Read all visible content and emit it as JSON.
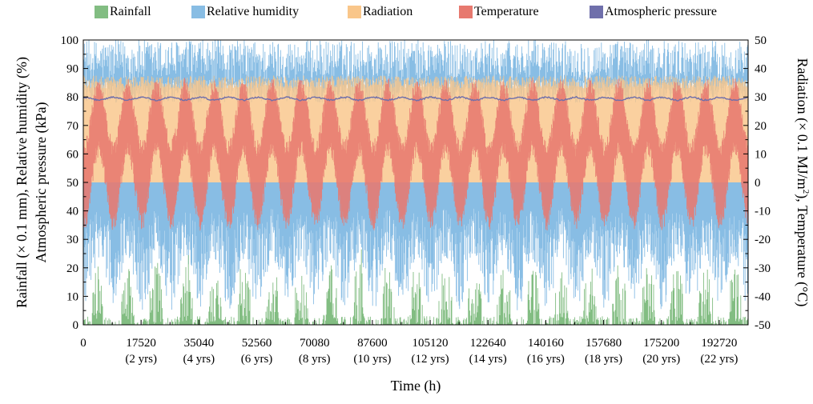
{
  "chart_data": {
    "type": "area",
    "title": "",
    "xlabel": "Time (h)",
    "ylabel_left": [
      "Rainfall (× 0.1 mm), Relative humidity (%)",
      "Atmospheric pressure (kPa)"
    ],
    "ylabel_right": "Radiation (× 0.1 MJ/m², Temperature (°C)",
    "ylabel_right_parts": [
      "Radiation (× 0.1 MJ/m",
      "2",
      "), Temperature (°C)"
    ],
    "xlim": [
      0,
      201480
    ],
    "ylim_left": [
      0,
      100
    ],
    "ylim_right": [
      -50,
      50
    ],
    "x_ticks": [
      {
        "value": 0,
        "label": "0",
        "sublabel": ""
      },
      {
        "value": 17520,
        "label": "17520",
        "sublabel": "(2 yrs)"
      },
      {
        "value": 35040,
        "label": "35040",
        "sublabel": "(4 yrs)"
      },
      {
        "value": 52560,
        "label": "52560",
        "sublabel": "(6 yrs)"
      },
      {
        "value": 70080,
        "label": "70080",
        "sublabel": "(8 yrs)"
      },
      {
        "value": 87600,
        "label": "87600",
        "sublabel": "(10 yrs)"
      },
      {
        "value": 105120,
        "label": "105120",
        "sublabel": "(12 yrs)"
      },
      {
        "value": 122640,
        "label": "122640",
        "sublabel": "(14 yrs)"
      },
      {
        "value": 140160,
        "label": "140160",
        "sublabel": "(16 yrs)"
      },
      {
        "value": 157680,
        "label": "157680",
        "sublabel": "(18 yrs)"
      },
      {
        "value": 175200,
        "label": "175200",
        "sublabel": "(20 yrs)"
      },
      {
        "value": 192720,
        "label": "192720",
        "sublabel": "(22 yrs)"
      }
    ],
    "y_ticks_left": [
      "0",
      "10",
      "20",
      "30",
      "40",
      "50",
      "60",
      "70",
      "80",
      "90",
      "100"
    ],
    "y_ticks_right": [
      "-50",
      "-40",
      "-30",
      "-20",
      "-10",
      "0",
      "10",
      "20",
      "30",
      "40",
      "50"
    ],
    "legend_position": "top",
    "series": [
      {
        "name": "Rainfall",
        "axis": "left",
        "color": "#82bd82",
        "summary": "hourly, 0 to ~30 (× 0.1 mm), seasonal peaks each year"
      },
      {
        "name": "Relative humidity",
        "axis": "left",
        "color": "#88bde4",
        "summary": "hourly, ~10 to 100 %, upper band 85-100"
      },
      {
        "name": "Radiation",
        "axis": "right",
        "color": "#f9c68a",
        "summary": "hourly, 0 to ~38 (× 0.1 MJ/m²)"
      },
      {
        "name": "Temperature",
        "axis": "right",
        "color": "#e7796f",
        "summary": "annual cycle, daily range ~-14 to ~34 °C"
      },
      {
        "name": "Atmospheric pressure",
        "axis": "left",
        "color": "#6f6fab",
        "summary": "~79 to 80 kPa, nearly constant"
      }
    ],
    "temperature_annual": {
      "period_h": 8760,
      "first_peak_h": 4700,
      "summer_high": 34,
      "summer_low": 12,
      "winter_high": 12,
      "winter_low": -14
    },
    "pressure_kpa": {
      "mean": 79.4,
      "amplitude": 0.5
    }
  }
}
